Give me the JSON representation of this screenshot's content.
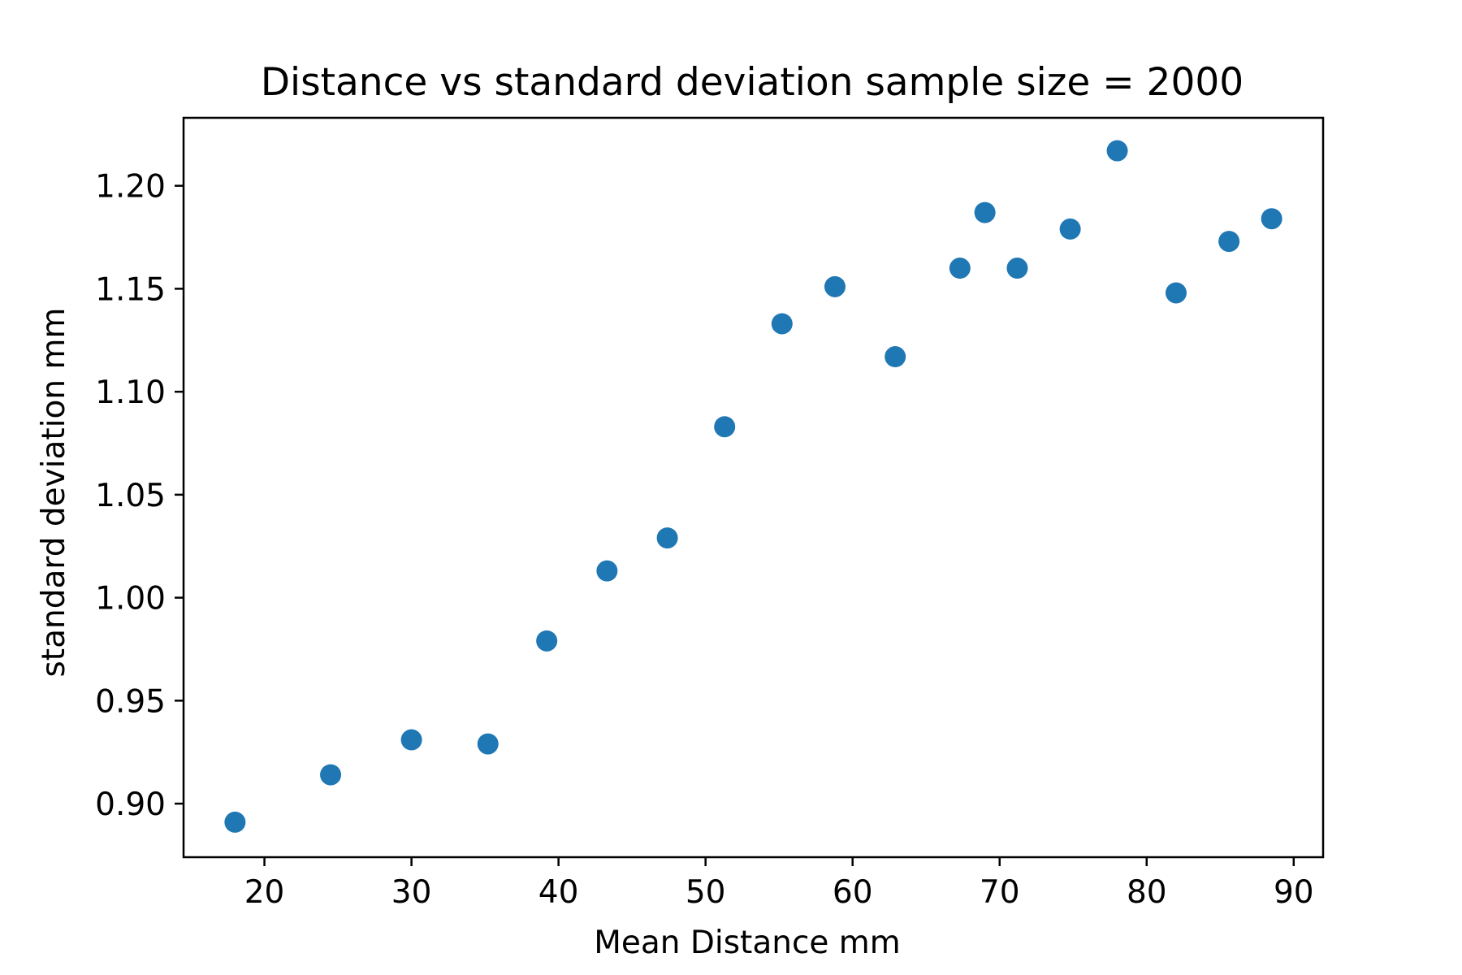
{
  "chart_data": {
    "type": "scatter",
    "title": "Distance vs standard deviation sample size = 2000",
    "xlabel": "Mean Distance mm",
    "ylabel": "standard deviation mm",
    "xlim": [
      14.5,
      92
    ],
    "ylim": [
      0.874,
      1.233
    ],
    "xticks": [
      20,
      30,
      40,
      50,
      60,
      70,
      80,
      90
    ],
    "xtick_labels": [
      "20",
      "30",
      "40",
      "50",
      "60",
      "70",
      "80",
      "90"
    ],
    "yticks": [
      0.9,
      0.95,
      1.0,
      1.05,
      1.1,
      1.15,
      1.2
    ],
    "ytick_labels": [
      "0.90",
      "0.95",
      "1.00",
      "1.05",
      "1.10",
      "1.15",
      "1.20"
    ],
    "grid": false,
    "marker_color": "#1f77b4",
    "points": [
      {
        "x": 18.0,
        "y": 0.891
      },
      {
        "x": 24.5,
        "y": 0.914
      },
      {
        "x": 30.0,
        "y": 0.931
      },
      {
        "x": 35.2,
        "y": 0.929
      },
      {
        "x": 39.2,
        "y": 0.979
      },
      {
        "x": 43.3,
        "y": 1.013
      },
      {
        "x": 47.4,
        "y": 1.029
      },
      {
        "x": 51.3,
        "y": 1.083
      },
      {
        "x": 55.2,
        "y": 1.133
      },
      {
        "x": 58.8,
        "y": 1.151
      },
      {
        "x": 62.9,
        "y": 1.117
      },
      {
        "x": 67.3,
        "y": 1.16
      },
      {
        "x": 69.0,
        "y": 1.187
      },
      {
        "x": 71.2,
        "y": 1.16
      },
      {
        "x": 74.8,
        "y": 1.179
      },
      {
        "x": 78.0,
        "y": 1.217
      },
      {
        "x": 82.0,
        "y": 1.148
      },
      {
        "x": 85.6,
        "y": 1.173
      },
      {
        "x": 88.5,
        "y": 1.184
      }
    ]
  }
}
